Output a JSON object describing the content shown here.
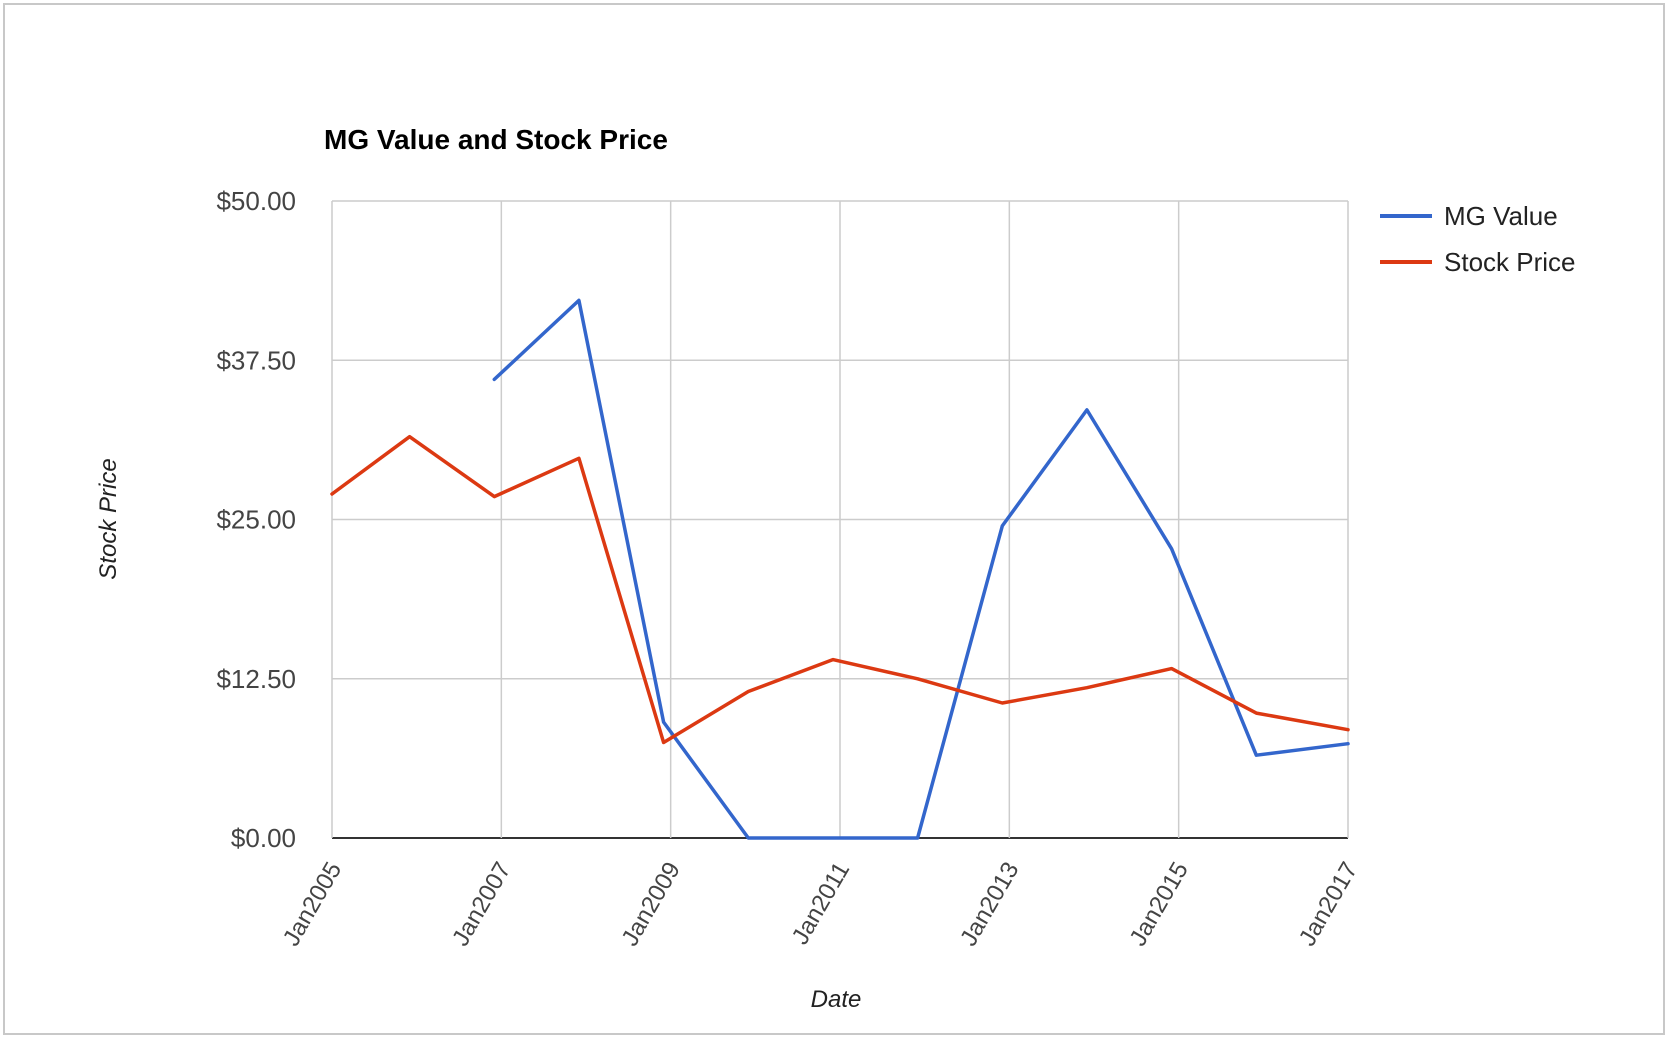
{
  "chart_data": {
    "type": "line",
    "title": "MG Value and Stock Price",
    "xlabel": "Date",
    "ylabel": "Stock Price",
    "x_tick_labels": [
      "Jan2005",
      "Jan2007",
      "Jan2009",
      "Jan2011",
      "Jan2013",
      "Jan2015",
      "Jan2017"
    ],
    "y_tick_labels": [
      "$0.00",
      "$12.50",
      "$25.00",
      "$37.50",
      "$50.00"
    ],
    "ylim": [
      0,
      50
    ],
    "xlim": [
      "2005-01",
      "2017-01"
    ],
    "grid": true,
    "legend_position": "right",
    "series": [
      {
        "name": "MG Value",
        "color": "#3366cc",
        "points": [
          {
            "x": "2006-12",
            "y": 36.0
          },
          {
            "x": "2007-12",
            "y": 42.2
          },
          {
            "x": "2008-12",
            "y": 9.1
          },
          {
            "x": "2009-12",
            "y": 0.0
          },
          {
            "x": "2010-12",
            "y": 0.0
          },
          {
            "x": "2011-12",
            "y": 0.0
          },
          {
            "x": "2012-12",
            "y": 24.5
          },
          {
            "x": "2013-12",
            "y": 33.6
          },
          {
            "x": "2014-12",
            "y": 22.7
          },
          {
            "x": "2015-12",
            "y": 6.5
          },
          {
            "x": "2017-01",
            "y": 7.4
          }
        ]
      },
      {
        "name": "Stock Price",
        "color": "#dc3912",
        "points": [
          {
            "x": "2005-01",
            "y": 27.0
          },
          {
            "x": "2005-12",
            "y": 31.5
          },
          {
            "x": "2006-12",
            "y": 26.8
          },
          {
            "x": "2007-12",
            "y": 29.8
          },
          {
            "x": "2008-12",
            "y": 7.5
          },
          {
            "x": "2009-12",
            "y": 11.5
          },
          {
            "x": "2010-12",
            "y": 14.0
          },
          {
            "x": "2011-12",
            "y": 12.5
          },
          {
            "x": "2012-12",
            "y": 10.6
          },
          {
            "x": "2013-12",
            "y": 11.8
          },
          {
            "x": "2014-12",
            "y": 13.3
          },
          {
            "x": "2015-12",
            "y": 9.8
          },
          {
            "x": "2017-01",
            "y": 8.5
          }
        ]
      }
    ]
  }
}
